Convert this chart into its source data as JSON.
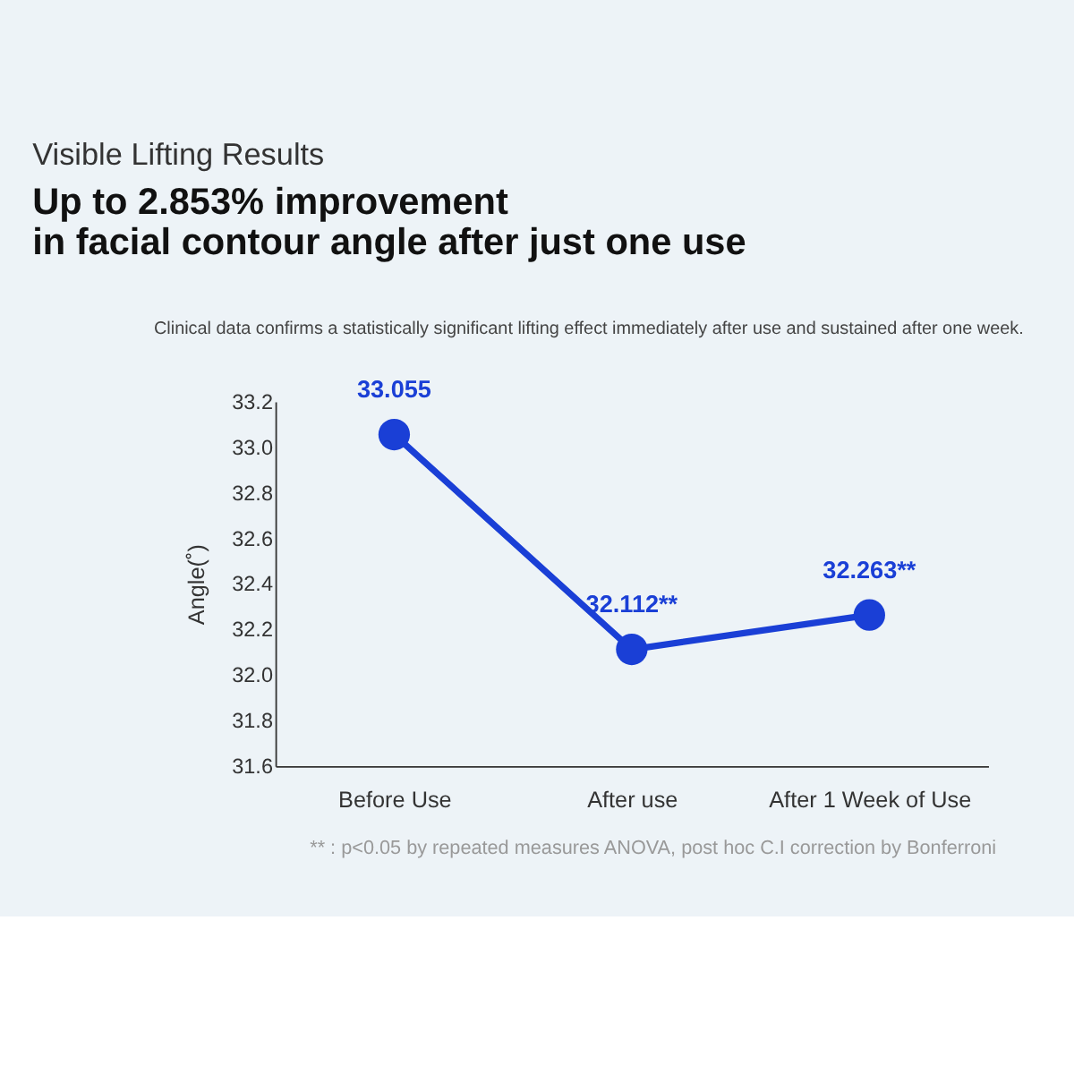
{
  "chart_data": {
    "type": "line",
    "title": "Visible Lifting Results",
    "subtitle": "Up to 2.853% improvement\nin facial contour angle after just one use",
    "ylabel": "Angle(˚)",
    "categories": [
      "Before Use",
      "After use",
      "After 1 Week of Use"
    ],
    "series": [
      {
        "color": "#1a3fd6",
        "values": [
          33.055,
          32.112,
          32.263
        ],
        "value_labels": [
          "33.055",
          "32.112**",
          "32.263**"
        ]
      }
    ],
    "ylim": [
      31.6,
      33.2
    ],
    "yticks": [
      31.6,
      31.8,
      {
        "value": 32,
        "label": "32.0"
      },
      32.2,
      32.4,
      32.6,
      32.8,
      {
        "value": 33,
        "label": "33.0"
      },
      33.2
    ],
    "grid": false,
    "marker": "circle",
    "line_style": "solid",
    "annotations": [
      "Clinical data confirms a statistically significant lifting effect immediately after use and sustained after one week.",
      "** : p<0.05 by repeated measures ANOVA, post hoc C.I correction by Bonferroni"
    ]
  }
}
